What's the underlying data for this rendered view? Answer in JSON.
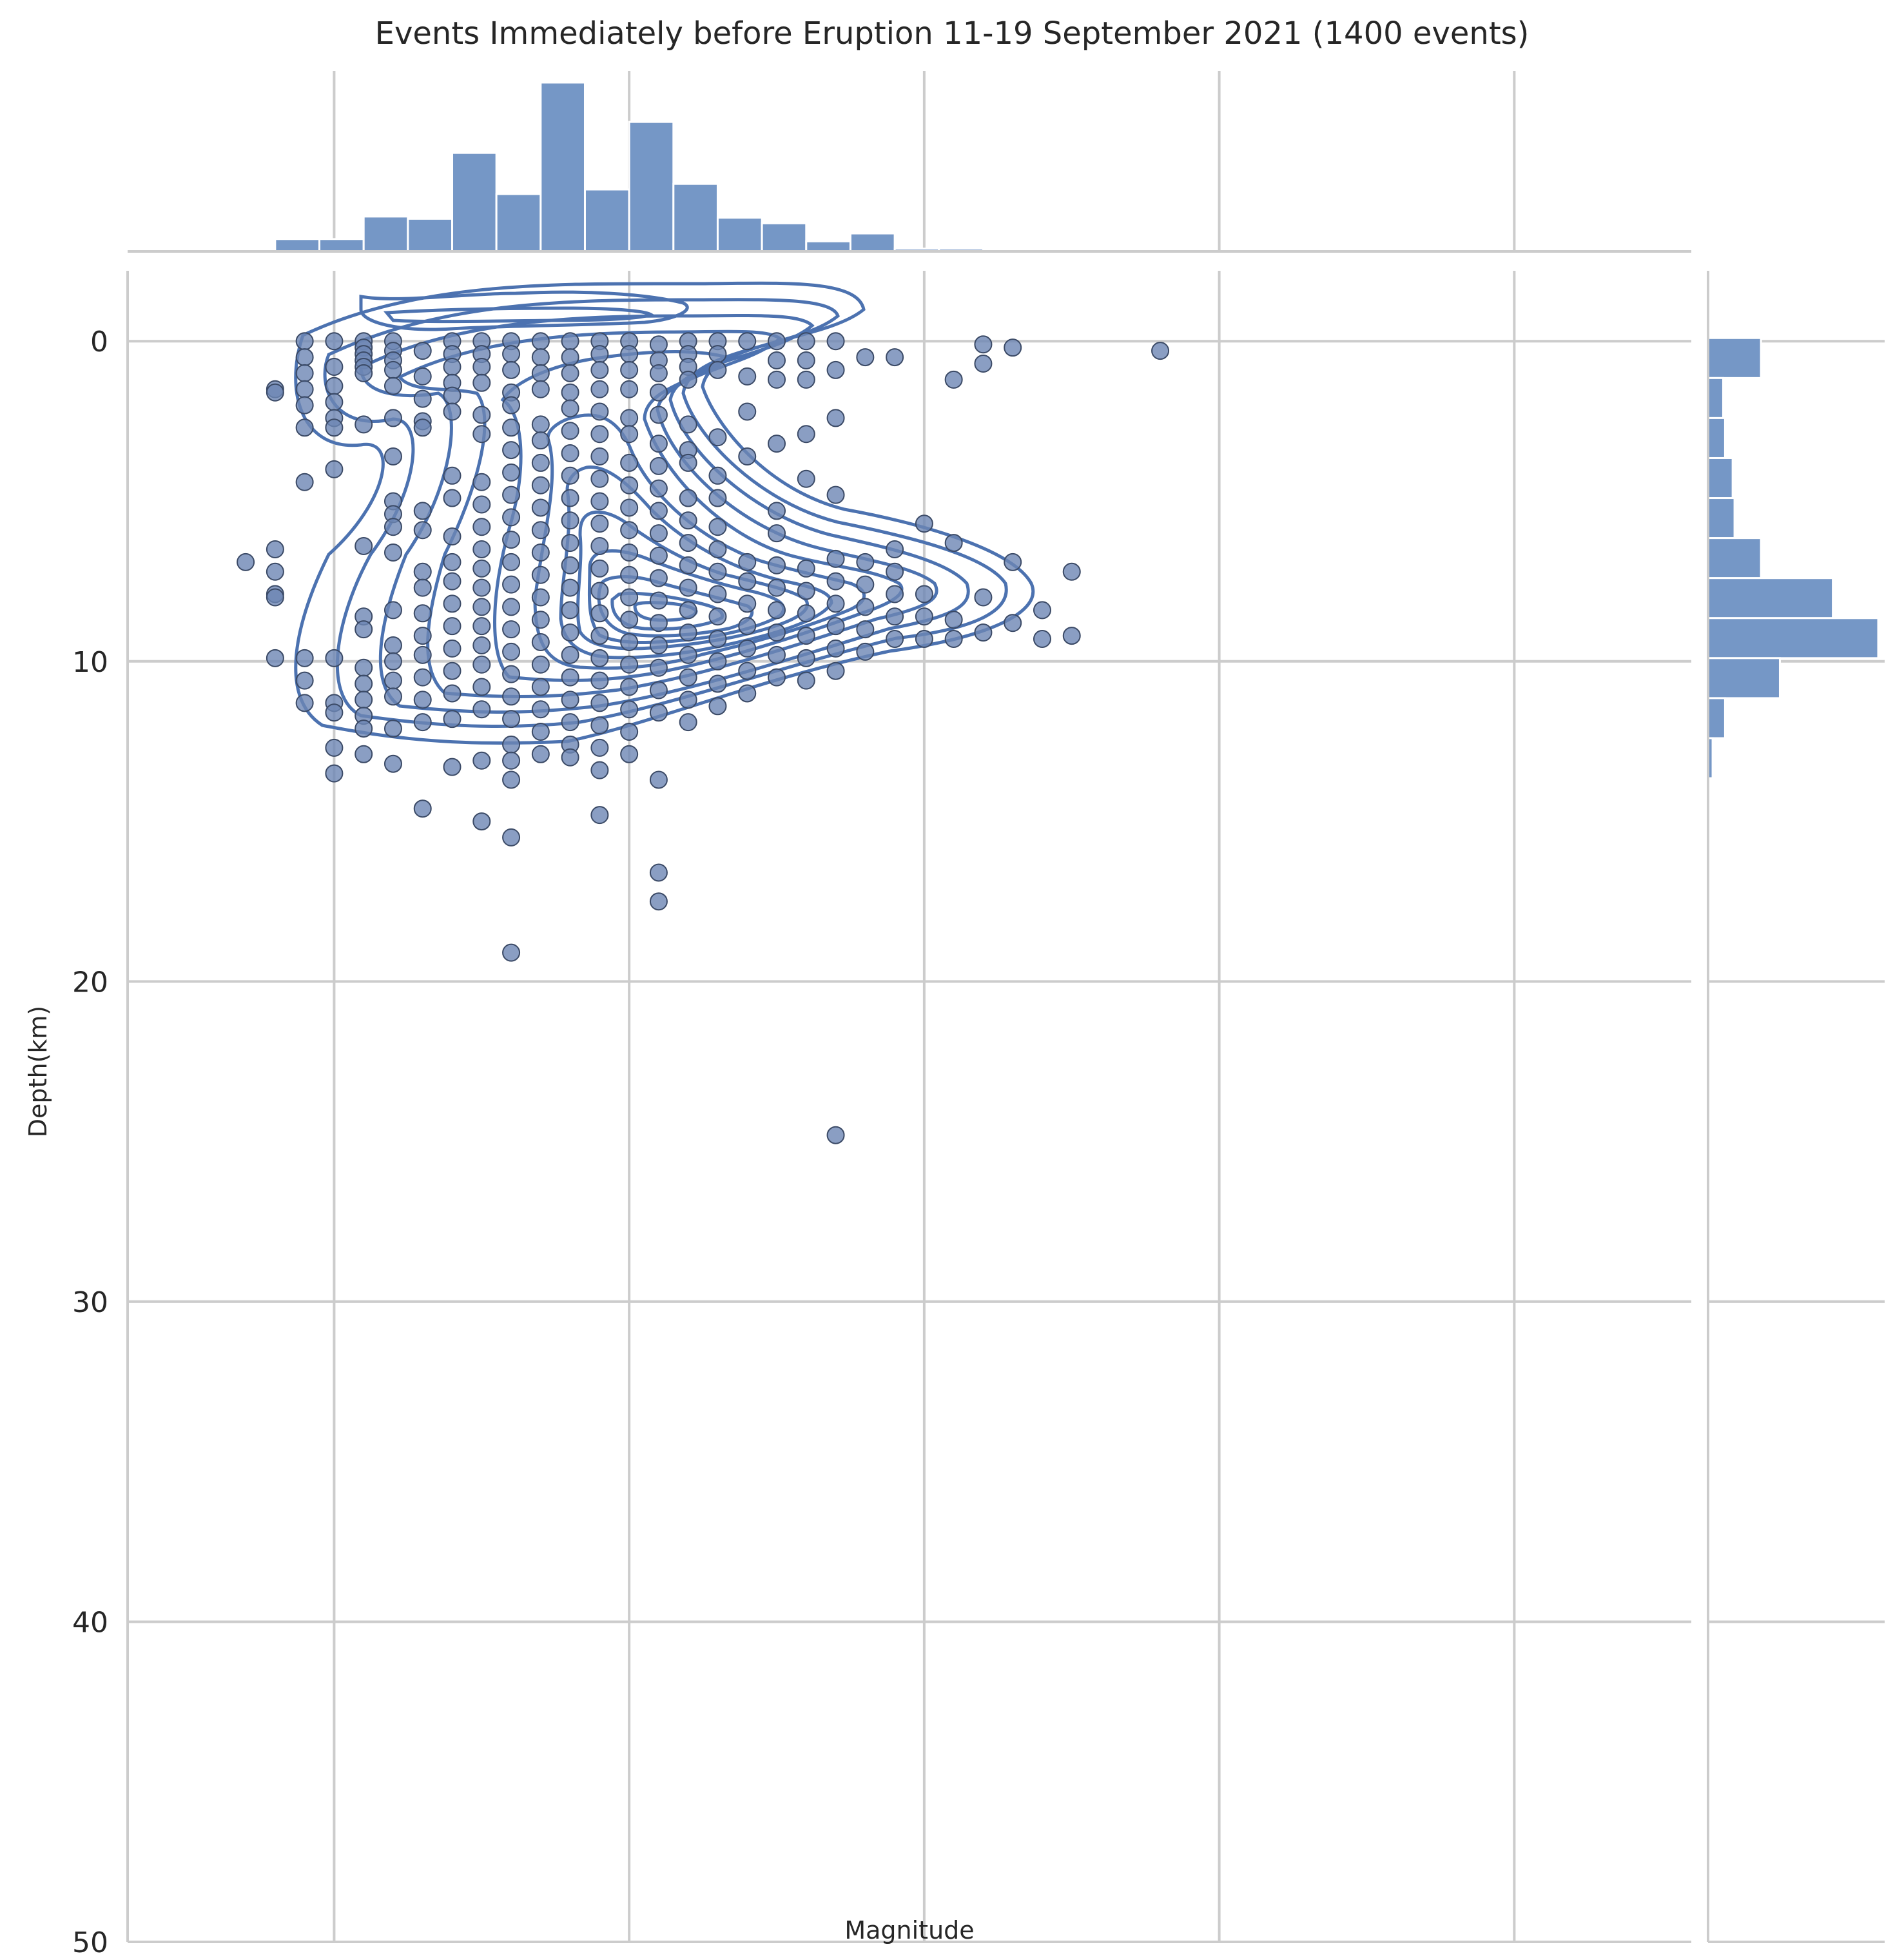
{
  "chart_data": {
    "type": "scatter",
    "title": "Events Immediately before Eruption 11-19 September 2021 (1400 events)",
    "xlabel": "Magnitude",
    "ylabel": "Depth(km)",
    "xlim": [
      0.3,
      5.6
    ],
    "ylim": [
      50,
      -2.2
    ],
    "y_inverted": true,
    "grid": true,
    "xticks": [
      "1",
      "2",
      "3",
      "4",
      "5"
    ],
    "yticks": [
      "0",
      "10",
      "20",
      "30",
      "40",
      "50"
    ],
    "colors": {
      "main": "#4c72b0",
      "bars": "#7597c6",
      "grid": "#cccccc"
    },
    "points": [
      [
        0.7,
        6.9
      ],
      [
        0.8,
        1.5
      ],
      [
        0.8,
        1.6
      ],
      [
        0.8,
        6.5
      ],
      [
        0.8,
        7.2
      ],
      [
        0.8,
        7.9
      ],
      [
        0.8,
        8.0
      ],
      [
        0.8,
        9.9
      ],
      [
        0.9,
        0.0
      ],
      [
        0.9,
        0.5
      ],
      [
        0.9,
        1.0
      ],
      [
        0.9,
        1.5
      ],
      [
        0.9,
        2.0
      ],
      [
        0.9,
        2.7
      ],
      [
        0.9,
        4.4
      ],
      [
        0.9,
        9.9
      ],
      [
        0.9,
        10.6
      ],
      [
        0.9,
        11.3
      ],
      [
        1.0,
        0.0
      ],
      [
        1.0,
        0.8
      ],
      [
        1.0,
        1.4
      ],
      [
        1.0,
        1.9
      ],
      [
        1.0,
        2.4
      ],
      [
        1.0,
        2.7
      ],
      [
        1.0,
        4.0
      ],
      [
        1.0,
        9.9
      ],
      [
        1.0,
        11.3
      ],
      [
        1.0,
        11.6
      ],
      [
        1.0,
        12.7
      ],
      [
        1.0,
        13.5
      ],
      [
        1.1,
        0.0
      ],
      [
        1.1,
        0.2
      ],
      [
        1.1,
        0.4
      ],
      [
        1.1,
        0.6
      ],
      [
        1.1,
        0.8
      ],
      [
        1.1,
        1.0
      ],
      [
        1.1,
        2.6
      ],
      [
        1.1,
        6.4
      ],
      [
        1.1,
        8.6
      ],
      [
        1.1,
        9.0
      ],
      [
        1.1,
        10.2
      ],
      [
        1.1,
        10.7
      ],
      [
        1.1,
        11.2
      ],
      [
        1.1,
        11.7
      ],
      [
        1.1,
        12.1
      ],
      [
        1.1,
        12.9
      ],
      [
        1.2,
        0.0
      ],
      [
        1.2,
        0.3
      ],
      [
        1.2,
        0.6
      ],
      [
        1.2,
        0.9
      ],
      [
        1.2,
        1.4
      ],
      [
        1.2,
        2.4
      ],
      [
        1.2,
        3.6
      ],
      [
        1.2,
        5.0
      ],
      [
        1.2,
        5.4
      ],
      [
        1.2,
        5.8
      ],
      [
        1.2,
        6.6
      ],
      [
        1.2,
        8.4
      ],
      [
        1.2,
        9.5
      ],
      [
        1.2,
        10.0
      ],
      [
        1.2,
        10.6
      ],
      [
        1.2,
        11.1
      ],
      [
        1.2,
        12.1
      ],
      [
        1.2,
        13.2
      ],
      [
        1.3,
        0.3
      ],
      [
        1.3,
        1.1
      ],
      [
        1.3,
        1.8
      ],
      [
        1.3,
        2.5
      ],
      [
        1.3,
        2.7
      ],
      [
        1.3,
        5.3
      ],
      [
        1.3,
        5.9
      ],
      [
        1.3,
        7.2
      ],
      [
        1.3,
        7.7
      ],
      [
        1.3,
        8.5
      ],
      [
        1.3,
        9.2
      ],
      [
        1.3,
        9.8
      ],
      [
        1.3,
        10.5
      ],
      [
        1.3,
        11.2
      ],
      [
        1.3,
        11.9
      ],
      [
        1.3,
        14.6
      ],
      [
        1.4,
        0.0
      ],
      [
        1.4,
        0.4
      ],
      [
        1.4,
        0.8
      ],
      [
        1.4,
        1.3
      ],
      [
        1.4,
        1.7
      ],
      [
        1.4,
        2.2
      ],
      [
        1.4,
        4.2
      ],
      [
        1.4,
        4.9
      ],
      [
        1.4,
        6.1
      ],
      [
        1.4,
        6.9
      ],
      [
        1.4,
        7.5
      ],
      [
        1.4,
        8.2
      ],
      [
        1.4,
        8.9
      ],
      [
        1.4,
        9.6
      ],
      [
        1.4,
        10.3
      ],
      [
        1.4,
        11.0
      ],
      [
        1.4,
        11.8
      ],
      [
        1.4,
        13.3
      ],
      [
        1.5,
        0.0
      ],
      [
        1.5,
        0.4
      ],
      [
        1.5,
        0.8
      ],
      [
        1.5,
        1.3
      ],
      [
        1.5,
        2.3
      ],
      [
        1.5,
        2.9
      ],
      [
        1.5,
        4.4
      ],
      [
        1.5,
        5.1
      ],
      [
        1.5,
        5.8
      ],
      [
        1.5,
        6.5
      ],
      [
        1.5,
        7.1
      ],
      [
        1.5,
        7.7
      ],
      [
        1.5,
        8.3
      ],
      [
        1.5,
        8.9
      ],
      [
        1.5,
        9.5
      ],
      [
        1.5,
        10.1
      ],
      [
        1.5,
        10.8
      ],
      [
        1.5,
        11.5
      ],
      [
        1.5,
        13.1
      ],
      [
        1.5,
        15.0
      ],
      [
        1.6,
        0.0
      ],
      [
        1.6,
        0.4
      ],
      [
        1.6,
        0.9
      ],
      [
        1.6,
        1.6
      ],
      [
        1.6,
        2.0
      ],
      [
        1.6,
        2.7
      ],
      [
        1.6,
        3.4
      ],
      [
        1.6,
        4.1
      ],
      [
        1.6,
        4.8
      ],
      [
        1.6,
        5.5
      ],
      [
        1.6,
        6.2
      ],
      [
        1.6,
        6.9
      ],
      [
        1.6,
        7.6
      ],
      [
        1.6,
        8.3
      ],
      [
        1.6,
        9.0
      ],
      [
        1.6,
        9.7
      ],
      [
        1.6,
        10.4
      ],
      [
        1.6,
        11.1
      ],
      [
        1.6,
        11.8
      ],
      [
        1.6,
        12.6
      ],
      [
        1.6,
        13.1
      ],
      [
        1.6,
        13.7
      ],
      [
        1.6,
        15.5
      ],
      [
        1.6,
        19.1
      ],
      [
        1.7,
        0.0
      ],
      [
        1.7,
        0.5
      ],
      [
        1.7,
        1.0
      ],
      [
        1.7,
        1.5
      ],
      [
        1.7,
        2.6
      ],
      [
        1.7,
        3.1
      ],
      [
        1.7,
        3.8
      ],
      [
        1.7,
        4.5
      ],
      [
        1.7,
        5.2
      ],
      [
        1.7,
        5.9
      ],
      [
        1.7,
        6.6
      ],
      [
        1.7,
        7.3
      ],
      [
        1.7,
        8.0
      ],
      [
        1.7,
        8.7
      ],
      [
        1.7,
        9.4
      ],
      [
        1.7,
        10.1
      ],
      [
        1.7,
        10.8
      ],
      [
        1.7,
        11.5
      ],
      [
        1.7,
        12.2
      ],
      [
        1.7,
        12.9
      ],
      [
        1.8,
        0.0
      ],
      [
        1.8,
        0.5
      ],
      [
        1.8,
        1.0
      ],
      [
        1.8,
        1.6
      ],
      [
        1.8,
        2.1
      ],
      [
        1.8,
        2.8
      ],
      [
        1.8,
        3.5
      ],
      [
        1.8,
        4.2
      ],
      [
        1.8,
        4.9
      ],
      [
        1.8,
        5.6
      ],
      [
        1.8,
        6.3
      ],
      [
        1.8,
        7.0
      ],
      [
        1.8,
        7.7
      ],
      [
        1.8,
        8.4
      ],
      [
        1.8,
        9.1
      ],
      [
        1.8,
        9.8
      ],
      [
        1.8,
        10.5
      ],
      [
        1.8,
        11.2
      ],
      [
        1.8,
        11.9
      ],
      [
        1.8,
        12.6
      ],
      [
        1.8,
        13.0
      ],
      [
        1.9,
        0.0
      ],
      [
        1.9,
        0.4
      ],
      [
        1.9,
        0.9
      ],
      [
        1.9,
        1.5
      ],
      [
        1.9,
        2.2
      ],
      [
        1.9,
        2.9
      ],
      [
        1.9,
        3.6
      ],
      [
        1.9,
        4.3
      ],
      [
        1.9,
        5.0
      ],
      [
        1.9,
        5.7
      ],
      [
        1.9,
        6.4
      ],
      [
        1.9,
        7.1
      ],
      [
        1.9,
        7.8
      ],
      [
        1.9,
        8.5
      ],
      [
        1.9,
        9.2
      ],
      [
        1.9,
        9.9
      ],
      [
        1.9,
        10.6
      ],
      [
        1.9,
        11.3
      ],
      [
        1.9,
        12.0
      ],
      [
        1.9,
        12.7
      ],
      [
        1.9,
        13.4
      ],
      [
        1.9,
        14.8
      ],
      [
        2.0,
        0.0
      ],
      [
        2.0,
        0.4
      ],
      [
        2.0,
        0.9
      ],
      [
        2.0,
        1.5
      ],
      [
        2.0,
        2.4
      ],
      [
        2.0,
        2.9
      ],
      [
        2.0,
        3.8
      ],
      [
        2.0,
        4.5
      ],
      [
        2.0,
        5.2
      ],
      [
        2.0,
        5.9
      ],
      [
        2.0,
        6.6
      ],
      [
        2.0,
        7.3
      ],
      [
        2.0,
        8.0
      ],
      [
        2.0,
        8.7
      ],
      [
        2.0,
        9.4
      ],
      [
        2.0,
        10.1
      ],
      [
        2.0,
        10.8
      ],
      [
        2.0,
        11.5
      ],
      [
        2.0,
        12.2
      ],
      [
        2.0,
        12.9
      ],
      [
        2.1,
        0.1
      ],
      [
        2.1,
        0.6
      ],
      [
        2.1,
        1.0
      ],
      [
        2.1,
        1.6
      ],
      [
        2.1,
        2.3
      ],
      [
        2.1,
        3.2
      ],
      [
        2.1,
        3.9
      ],
      [
        2.1,
        4.6
      ],
      [
        2.1,
        5.3
      ],
      [
        2.1,
        6.0
      ],
      [
        2.1,
        6.7
      ],
      [
        2.1,
        7.4
      ],
      [
        2.1,
        8.1
      ],
      [
        2.1,
        8.8
      ],
      [
        2.1,
        9.5
      ],
      [
        2.1,
        10.2
      ],
      [
        2.1,
        10.9
      ],
      [
        2.1,
        11.6
      ],
      [
        2.1,
        13.7
      ],
      [
        2.1,
        16.6
      ],
      [
        2.1,
        17.5
      ],
      [
        2.2,
        0.0
      ],
      [
        2.2,
        0.4
      ],
      [
        2.2,
        0.8
      ],
      [
        2.2,
        1.2
      ],
      [
        2.2,
        2.6
      ],
      [
        2.2,
        3.4
      ],
      [
        2.2,
        3.8
      ],
      [
        2.2,
        4.9
      ],
      [
        2.2,
        5.6
      ],
      [
        2.2,
        6.3
      ],
      [
        2.2,
        7.0
      ],
      [
        2.2,
        7.7
      ],
      [
        2.2,
        8.4
      ],
      [
        2.2,
        9.1
      ],
      [
        2.2,
        9.8
      ],
      [
        2.2,
        10.5
      ],
      [
        2.2,
        11.2
      ],
      [
        2.2,
        11.9
      ],
      [
        2.3,
        0.0
      ],
      [
        2.3,
        0.4
      ],
      [
        2.3,
        0.9
      ],
      [
        2.3,
        3.0
      ],
      [
        2.3,
        4.2
      ],
      [
        2.3,
        4.9
      ],
      [
        2.3,
        5.8
      ],
      [
        2.3,
        6.5
      ],
      [
        2.3,
        7.2
      ],
      [
        2.3,
        7.9
      ],
      [
        2.3,
        8.6
      ],
      [
        2.3,
        9.3
      ],
      [
        2.3,
        10.0
      ],
      [
        2.3,
        10.7
      ],
      [
        2.3,
        11.4
      ],
      [
        2.4,
        0.0
      ],
      [
        2.4,
        1.1
      ],
      [
        2.4,
        2.2
      ],
      [
        2.4,
        3.6
      ],
      [
        2.4,
        6.9
      ],
      [
        2.4,
        7.5
      ],
      [
        2.4,
        8.2
      ],
      [
        2.4,
        8.9
      ],
      [
        2.4,
        9.6
      ],
      [
        2.4,
        10.3
      ],
      [
        2.4,
        11.0
      ],
      [
        2.5,
        0.0
      ],
      [
        2.5,
        0.6
      ],
      [
        2.5,
        1.2
      ],
      [
        2.5,
        3.2
      ],
      [
        2.5,
        5.3
      ],
      [
        2.5,
        6.0
      ],
      [
        2.5,
        7.0
      ],
      [
        2.5,
        7.7
      ],
      [
        2.5,
        8.4
      ],
      [
        2.5,
        9.1
      ],
      [
        2.5,
        9.8
      ],
      [
        2.5,
        10.5
      ],
      [
        2.6,
        0.0
      ],
      [
        2.6,
        0.6
      ],
      [
        2.6,
        1.2
      ],
      [
        2.6,
        2.9
      ],
      [
        2.6,
        4.3
      ],
      [
        2.6,
        7.1
      ],
      [
        2.6,
        7.8
      ],
      [
        2.6,
        8.5
      ],
      [
        2.6,
        9.2
      ],
      [
        2.6,
        9.9
      ],
      [
        2.6,
        10.6
      ],
      [
        2.7,
        0.0
      ],
      [
        2.7,
        0.9
      ],
      [
        2.7,
        2.4
      ],
      [
        2.7,
        4.8
      ],
      [
        2.7,
        6.8
      ],
      [
        2.7,
        7.5
      ],
      [
        2.7,
        8.2
      ],
      [
        2.7,
        8.9
      ],
      [
        2.7,
        9.6
      ],
      [
        2.7,
        10.3
      ],
      [
        2.7,
        24.8
      ],
      [
        2.8,
        0.5
      ],
      [
        2.8,
        6.9
      ],
      [
        2.8,
        7.6
      ],
      [
        2.8,
        8.3
      ],
      [
        2.8,
        9.0
      ],
      [
        2.8,
        9.7
      ],
      [
        2.9,
        0.5
      ],
      [
        2.9,
        6.5
      ],
      [
        2.9,
        7.2
      ],
      [
        2.9,
        7.9
      ],
      [
        2.9,
        8.6
      ],
      [
        2.9,
        9.3
      ],
      [
        3.0,
        5.7
      ],
      [
        3.0,
        7.9
      ],
      [
        3.0,
        8.6
      ],
      [
        3.0,
        9.3
      ],
      [
        3.1,
        1.2
      ],
      [
        3.1,
        6.3
      ],
      [
        3.1,
        8.7
      ],
      [
        3.1,
        9.3
      ],
      [
        3.2,
        0.1
      ],
      [
        3.2,
        0.7
      ],
      [
        3.2,
        8.0
      ],
      [
        3.2,
        9.1
      ],
      [
        3.3,
        0.2
      ],
      [
        3.3,
        6.9
      ],
      [
        3.3,
        8.8
      ],
      [
        3.4,
        8.4
      ],
      [
        3.4,
        9.3
      ],
      [
        3.5,
        7.2
      ],
      [
        3.5,
        9.2
      ],
      [
        3.8,
        0.3
      ]
    ],
    "marginal_x_histogram": {
      "bin_edges": [
        0.65,
        0.8,
        0.95,
        1.1,
        1.25,
        1.4,
        1.55,
        1.7,
        1.85,
        2.0,
        2.15,
        2.3,
        2.45,
        2.6,
        2.75,
        2.9,
        3.05,
        3.2,
        3.35
      ],
      "counts": [
        3,
        22,
        22,
        62,
        58,
        175,
        102,
        300,
        110,
        230,
        120,
        60,
        50,
        18,
        32,
        5,
        5,
        0
      ]
    },
    "marginal_y_histogram": {
      "bin_edges": [
        -0.1,
        1.15,
        2.4,
        3.65,
        4.9,
        6.15,
        7.4,
        8.65,
        9.9,
        11.15,
        12.4,
        13.65
      ],
      "counts": [
        140,
        40,
        45,
        65,
        70,
        140,
        330,
        450,
        190,
        45,
        12
      ]
    },
    "density_contours_note": "kde contour overlay"
  }
}
